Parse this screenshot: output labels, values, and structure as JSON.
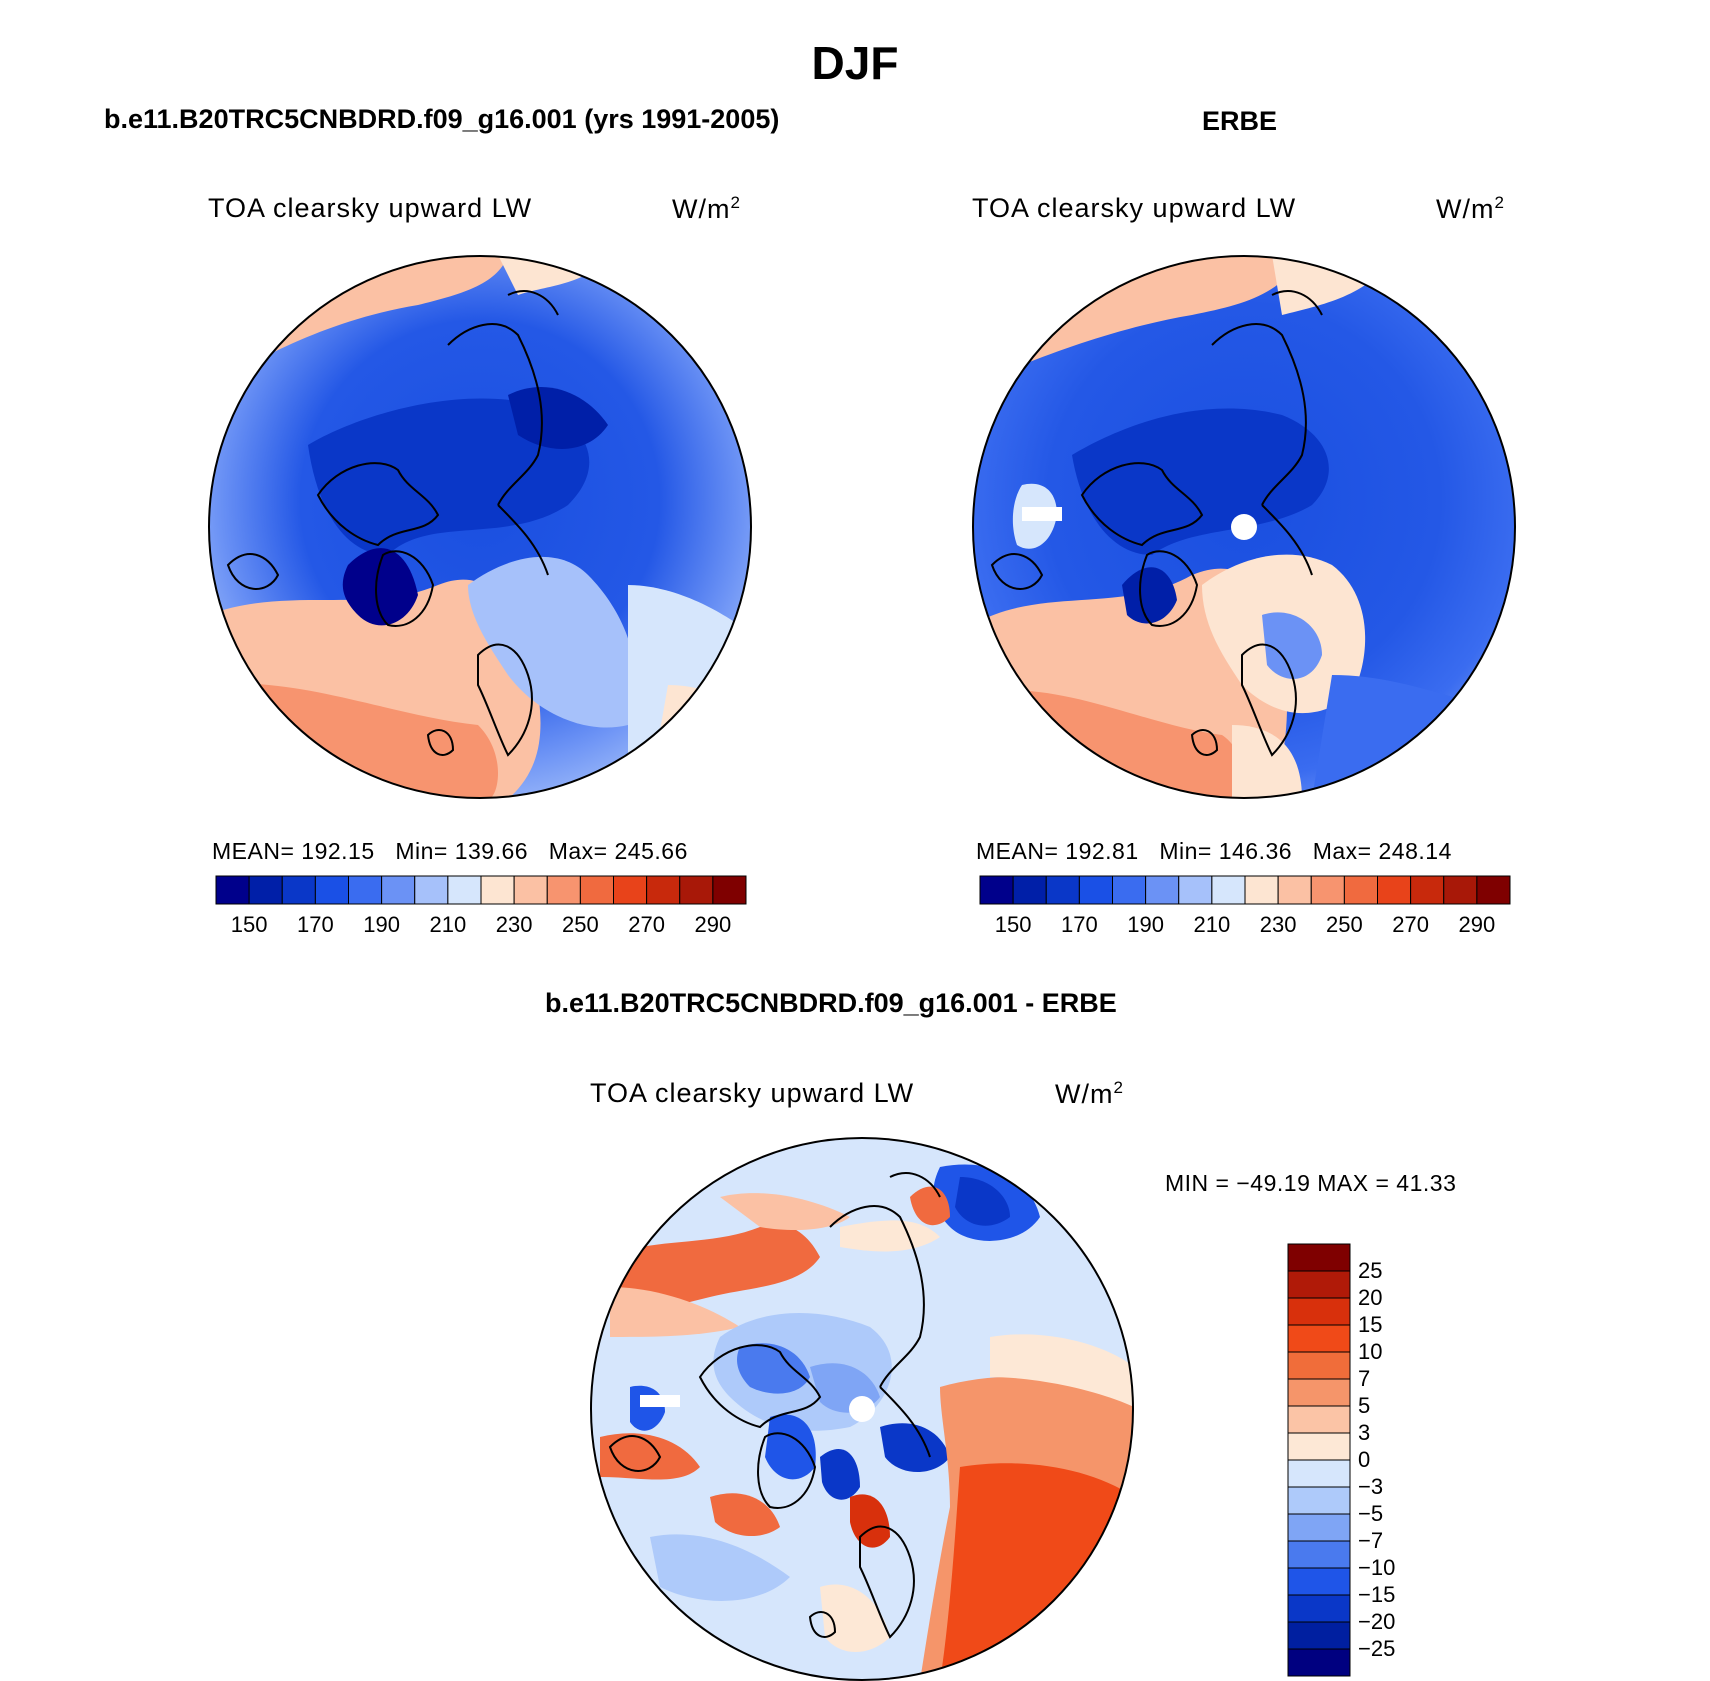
{
  "title": "DJF",
  "variable_label": "TOA clearsky upward LW",
  "units": {
    "base": "W/m",
    "sup": "2"
  },
  "panels": {
    "model": {
      "title": "b.e11.B20TRC5CNBDRD.f09_g16.001 (yrs 1991-2005)",
      "mean_label": "MEAN=",
      "mean": "192.15",
      "min_label": "Min=",
      "min": "139.66",
      "max_label": "Max=",
      "max": "245.66"
    },
    "obs": {
      "title": "ERBE",
      "mean_label": "MEAN=",
      "mean": "192.81",
      "min_label": "Min=",
      "min": "146.36",
      "max_label": "Max=",
      "max": "248.14"
    },
    "diff": {
      "title": "b.e11.B20TRC5CNBDRD.f09_g16.001 - ERBE",
      "minmax_text": "MIN = −49.19 MAX =  41.33"
    }
  },
  "abs_colorbar": {
    "labels": [
      "150",
      "170",
      "190",
      "210",
      "230",
      "250",
      "270",
      "290"
    ],
    "colors": [
      "#00008b",
      "#001fa8",
      "#0a37c8",
      "#1a50e6",
      "#3a6cf0",
      "#6b92f5",
      "#a6c1fa",
      "#d6e6fc",
      "#fde5d2",
      "#fbc1a4",
      "#f7946f",
      "#f06a3f",
      "#e8431a",
      "#c8290c",
      "#a81808",
      "#7f0000"
    ]
  },
  "diff_colorbar": {
    "labels": [
      "25",
      "20",
      "15",
      "10",
      "7",
      "5",
      "3",
      "0",
      "−3",
      "−5",
      "−7",
      "−10",
      "−15",
      "−20",
      "−25"
    ],
    "colors": [
      "#7f0000",
      "#b01a08",
      "#d8300c",
      "#f04a18",
      "#f06d3a",
      "#f5956a",
      "#fbc4a6",
      "#fde8d6",
      "#d6e6fc",
      "#aecafa",
      "#7fa5f5",
      "#4a7aee",
      "#1f55e8",
      "#0a37c8",
      "#001fa0",
      "#000080"
    ]
  },
  "map_colors": {
    "land_outline": "#000000",
    "polar_hole": "#ffffff"
  }
}
